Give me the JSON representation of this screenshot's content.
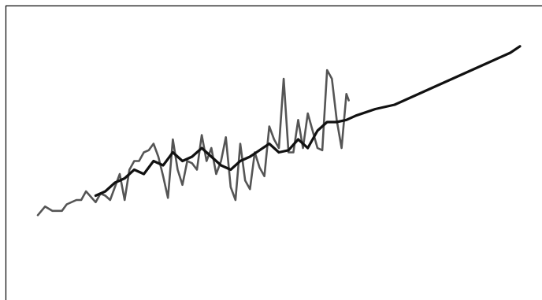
{
  "chart_data": {
    "type": "line",
    "title": "",
    "xlabel": "",
    "ylabel": "",
    "xlim": [
      0,
      100
    ],
    "ylim": [
      0,
      100
    ],
    "grid": false,
    "legend": "none",
    "series": [
      {
        "color": "#555555",
        "x": [
          0,
          1.5,
          3,
          5,
          6,
          8,
          9,
          10,
          12,
          13,
          14,
          15,
          16,
          17,
          18,
          19,
          20,
          21,
          22,
          23,
          24,
          25,
          26,
          27,
          28,
          29,
          30,
          31,
          32,
          33,
          34,
          35,
          36,
          37,
          38,
          39,
          40,
          41,
          42,
          43,
          44,
          45,
          46,
          47,
          48,
          49,
          50,
          51,
          52,
          53,
          54,
          55,
          56,
          57,
          58,
          59,
          60,
          61,
          62,
          63,
          64,
          64.5
        ],
        "y": [
          17,
          21,
          19,
          19,
          22,
          24,
          24,
          28,
          23,
          27,
          26,
          24,
          30,
          36,
          24,
          38,
          42,
          42,
          46,
          47,
          50,
          44,
          35,
          25,
          52,
          38,
          31,
          42,
          41,
          38,
          54,
          42,
          48,
          36,
          42,
          53,
          30,
          24,
          50,
          33,
          29,
          46,
          39,
          35,
          58,
          52,
          48,
          80,
          46,
          46,
          61,
          48,
          64,
          56,
          48,
          47,
          84,
          80,
          61,
          48,
          73,
          70
        ]
      },
      {
        "color": "#111111",
        "x": [
          12,
          14,
          16,
          18,
          20,
          22,
          24,
          26,
          28,
          30,
          32,
          34,
          36,
          38,
          40,
          42,
          44,
          46,
          48,
          50,
          52,
          54,
          56,
          58,
          60,
          62,
          64,
          66,
          70,
          74,
          78,
          82,
          86,
          90,
          94,
          98,
          100
        ],
        "y": [
          26,
          28,
          32,
          34,
          38,
          36,
          42,
          40,
          46,
          42,
          44,
          48,
          44,
          40,
          38,
          42,
          44,
          47,
          50,
          46,
          47,
          52,
          48,
          56,
          60,
          60,
          61,
          63,
          66,
          68,
          72,
          76,
          80,
          84,
          88,
          92,
          95
        ]
      }
    ]
  }
}
